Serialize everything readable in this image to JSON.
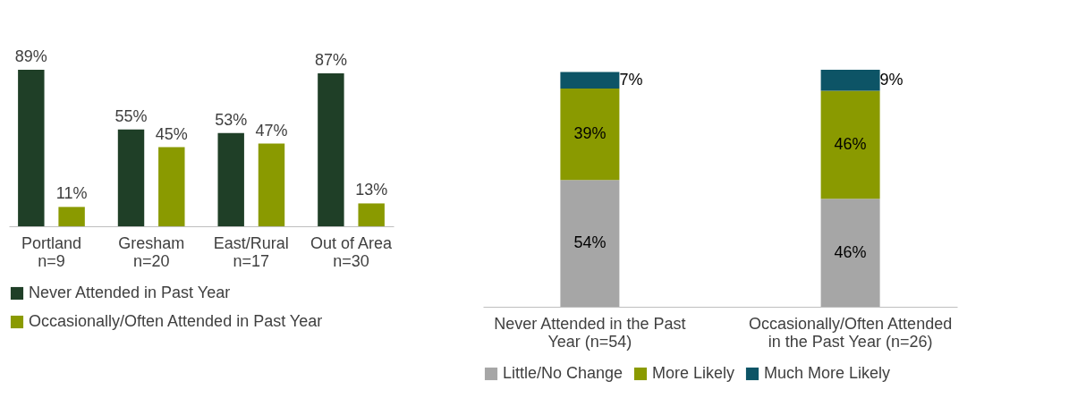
{
  "chart_data": [
    {
      "type": "bar",
      "categories": [
        "Portland\nn=9",
        "Gresham\nn=20",
        "East/Rural\nn=17",
        "Out of Area\nn=30"
      ],
      "series": [
        {
          "name": "Never Attended in Past Year",
          "color": "#1f3f27",
          "values": [
            89,
            55,
            53,
            87
          ],
          "value_labels": [
            "89%",
            "55%",
            "53%",
            "87%"
          ]
        },
        {
          "name": "Occasionally/Often Attended in Past Year",
          "color": "#8a9a00",
          "values": [
            11,
            45,
            47,
            13
          ],
          "value_labels": [
            "11%",
            "45%",
            "47%",
            "13%"
          ]
        }
      ],
      "legend": "bottom"
    },
    {
      "type": "bar",
      "stacked": true,
      "categories": [
        "Never Attended in the Past\nYear (n=54)",
        "Occasionally/Often Attended\nin the Past Year (n=26)"
      ],
      "series": [
        {
          "name": "Little/No Change",
          "color": "#a6a6a6",
          "values": [
            54,
            46
          ],
          "value_labels": [
            "54%",
            "46%"
          ]
        },
        {
          "name": "More Likely",
          "color": "#8a9a00",
          "values": [
            39,
            46
          ],
          "value_labels": [
            "39%",
            "46%"
          ]
        },
        {
          "name": "Much More Likely",
          "color": "#0d5466",
          "values": [
            7,
            9
          ],
          "value_labels": [
            "7%",
            "9%"
          ]
        }
      ],
      "legend": "bottom"
    }
  ]
}
